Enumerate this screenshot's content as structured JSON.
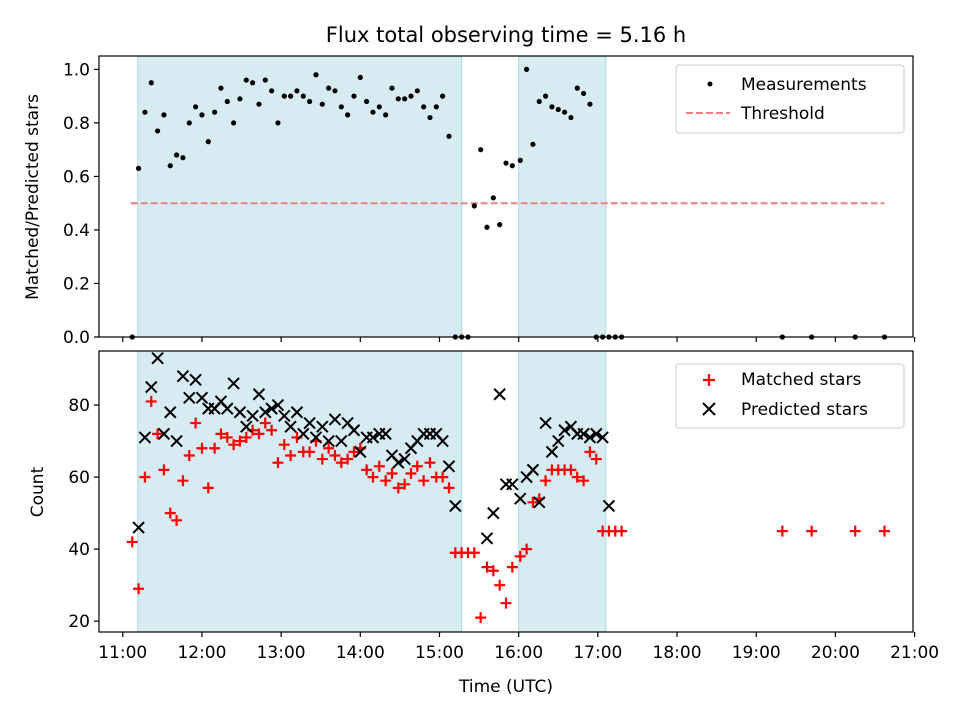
{
  "title": "Flux total observing time = 5.16 h",
  "xlabel": "Time (UTC)",
  "colors": {
    "band": "#add8e6",
    "measure": "#000000",
    "threshold": "#f08080",
    "matched": "#ff0000",
    "predicted": "#000000"
  },
  "x_ticks": [
    "11:00",
    "12:00",
    "13:00",
    "14:00",
    "15:00",
    "16:00",
    "17:00",
    "18:00",
    "19:00",
    "20:00",
    "21:00"
  ],
  "chart_data": [
    {
      "type": "scatter",
      "panel": "top",
      "ylabel": "Matched/Predicted stars",
      "xlim": [
        10.7,
        20.98
      ],
      "ylim": [
        0,
        1.05
      ],
      "y_ticks": [
        "0.0",
        "0.2",
        "0.4",
        "0.6",
        "0.8",
        "1.0"
      ],
      "y_tick_values": [
        0,
        0.2,
        0.4,
        0.6,
        0.8,
        1.0
      ],
      "legend": {
        "position": "top-right",
        "entries": [
          "Measurements",
          "Threshold"
        ]
      },
      "threshold": {
        "name": "Threshold",
        "y": 0.5,
        "x": [
          11.1,
          20.62
        ]
      },
      "bands": [
        [
          11.19,
          15.28
        ],
        [
          16.0,
          17.1
        ]
      ],
      "series": [
        {
          "name": "Measurements",
          "x": [
            11.12,
            11.2,
            11.28,
            11.36,
            11.44,
            11.52,
            11.6,
            11.68,
            11.76,
            11.84,
            11.92,
            12.0,
            12.08,
            12.16,
            12.24,
            12.32,
            12.4,
            12.48,
            12.56,
            12.64,
            12.72,
            12.8,
            12.88,
            12.96,
            13.04,
            13.12,
            13.2,
            13.28,
            13.36,
            13.44,
            13.52,
            13.6,
            13.68,
            13.76,
            13.84,
            13.92,
            14.0,
            14.08,
            14.16,
            14.24,
            14.32,
            14.4,
            14.48,
            14.56,
            14.64,
            14.72,
            14.8,
            14.88,
            14.96,
            15.04,
            15.12,
            15.2,
            15.28,
            15.36,
            15.44,
            15.52,
            15.6,
            15.68,
            15.76,
            15.84,
            15.92,
            16.02,
            16.1,
            16.18,
            16.26,
            16.34,
            16.42,
            16.5,
            16.58,
            16.66,
            16.74,
            16.82,
            16.9,
            16.98,
            17.06,
            17.14,
            17.22,
            17.3,
            19.33,
            19.7,
            20.25,
            20.62
          ],
          "y": [
            0.0,
            0.63,
            0.84,
            0.95,
            0.77,
            0.83,
            0.64,
            0.68,
            0.67,
            0.8,
            0.86,
            0.83,
            0.73,
            0.84,
            0.93,
            0.88,
            0.8,
            0.89,
            0.96,
            0.95,
            0.87,
            0.96,
            0.92,
            0.8,
            0.9,
            0.9,
            0.92,
            0.9,
            0.88,
            0.98,
            0.87,
            0.93,
            0.92,
            0.86,
            0.83,
            0.9,
            0.97,
            0.88,
            0.84,
            0.86,
            0.83,
            0.93,
            0.89,
            0.89,
            0.9,
            0.92,
            0.86,
            0.82,
            0.86,
            0.9,
            0.75,
            0.0,
            0.0,
            0.0,
            0.49,
            0.7,
            0.41,
            0.52,
            0.42,
            0.65,
            0.64,
            0.66,
            1.0,
            0.72,
            0.88,
            0.9,
            0.86,
            0.85,
            0.84,
            0.82,
            0.93,
            0.91,
            0.87,
            0.0,
            0.0,
            0.0,
            0.0,
            0.0,
            0.0,
            0.0,
            0.0,
            0.0
          ]
        }
      ]
    },
    {
      "type": "scatter",
      "panel": "bottom",
      "ylabel": "Count",
      "xlim": [
        10.7,
        20.98
      ],
      "ylim": [
        17,
        95
      ],
      "y_ticks": [
        "20",
        "40",
        "60",
        "80"
      ],
      "y_tick_values": [
        20,
        40,
        60,
        80
      ],
      "legend": {
        "position": "top-right",
        "entries": [
          "Matched stars",
          "Predicted stars"
        ]
      },
      "bands": [
        [
          11.19,
          15.28
        ],
        [
          16.0,
          17.1
        ]
      ],
      "series": [
        {
          "name": "Matched stars",
          "marker": "plus",
          "x": [
            11.12,
            11.2,
            11.28,
            11.36,
            11.44,
            11.52,
            11.6,
            11.68,
            11.76,
            11.84,
            11.92,
            12.0,
            12.08,
            12.16,
            12.24,
            12.32,
            12.4,
            12.48,
            12.56,
            12.64,
            12.72,
            12.8,
            12.88,
            12.96,
            13.04,
            13.12,
            13.2,
            13.28,
            13.36,
            13.44,
            13.52,
            13.6,
            13.68,
            13.76,
            13.84,
            13.92,
            14.0,
            14.08,
            14.16,
            14.24,
            14.32,
            14.4,
            14.48,
            14.56,
            14.64,
            14.72,
            14.8,
            14.88,
            14.96,
            15.04,
            15.12,
            15.2,
            15.28,
            15.36,
            15.44,
            15.52,
            15.6,
            15.68,
            15.76,
            15.84,
            15.92,
            16.02,
            16.1,
            16.18,
            16.26,
            16.34,
            16.42,
            16.5,
            16.58,
            16.66,
            16.74,
            16.82,
            16.9,
            16.98,
            17.06,
            17.14,
            17.22,
            17.3,
            19.33,
            19.7,
            20.25,
            20.62
          ],
          "y": [
            42,
            29,
            60,
            81,
            72,
            62,
            50,
            48,
            59,
            66,
            75,
            68,
            57,
            68,
            72,
            71,
            69,
            70,
            71,
            73,
            72,
            75,
            73,
            64,
            69,
            66,
            71,
            67,
            67,
            70,
            65,
            68,
            66,
            64,
            65,
            67,
            68,
            62,
            60,
            63,
            59,
            61,
            57,
            58,
            61,
            63,
            59,
            64,
            60,
            60,
            57,
            39,
            39,
            39,
            39,
            21,
            35,
            34,
            30,
            25,
            35,
            38,
            40,
            53,
            54,
            59,
            62,
            62,
            62,
            62,
            60,
            59,
            67,
            65,
            45,
            45,
            45,
            45,
            45,
            45,
            45,
            45
          ]
        },
        {
          "name": "Predicted stars",
          "marker": "x",
          "x": [
            11.2,
            11.28,
            11.36,
            11.44,
            11.52,
            11.6,
            11.68,
            11.76,
            11.84,
            11.92,
            12.0,
            12.08,
            12.16,
            12.24,
            12.32,
            12.4,
            12.48,
            12.56,
            12.64,
            12.72,
            12.8,
            12.88,
            12.96,
            13.04,
            13.12,
            13.2,
            13.28,
            13.36,
            13.44,
            13.52,
            13.6,
            13.68,
            13.76,
            13.84,
            13.92,
            14.0,
            14.08,
            14.16,
            14.24,
            14.32,
            14.4,
            14.48,
            14.56,
            14.64,
            14.72,
            14.8,
            14.88,
            14.96,
            15.04,
            15.12,
            15.2,
            15.6,
            15.68,
            15.76,
            15.84,
            15.92,
            16.02,
            16.1,
            16.18,
            16.26,
            16.34,
            16.42,
            16.5,
            16.58,
            16.66,
            16.74,
            16.82,
            16.9,
            16.98,
            17.06,
            17.14
          ],
          "y": [
            46,
            71,
            85,
            93,
            72,
            78,
            70,
            88,
            82,
            87,
            82,
            79,
            79,
            81,
            79,
            86,
            78,
            74,
            77,
            83,
            78,
            79,
            80,
            77,
            74,
            78,
            72,
            75,
            71,
            74,
            70,
            76,
            70,
            75,
            73,
            67,
            71,
            71,
            72,
            72,
            66,
            64,
            65,
            68,
            70,
            72,
            72,
            72,
            70,
            63,
            52,
            43,
            50,
            83,
            58,
            58,
            54,
            60,
            62,
            53,
            75,
            67,
            70,
            73,
            74,
            72,
            72,
            71,
            72,
            71,
            52
          ]
        }
      ]
    }
  ]
}
